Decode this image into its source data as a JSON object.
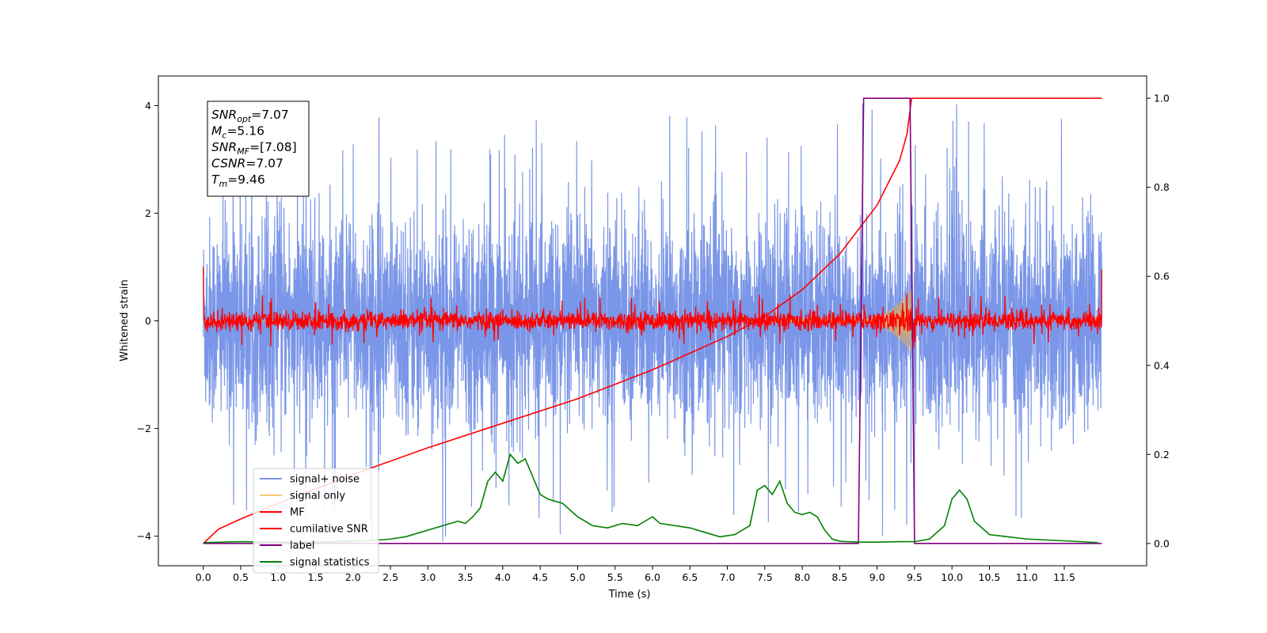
{
  "chart_data": {
    "type": "line",
    "xlabel": "Time (s)",
    "ylabel": "Whitened strain",
    "xlim": [
      -0.6,
      12.6
    ],
    "ylim": [
      -4.55,
      4.55
    ],
    "ylim_right": [
      -0.05,
      1.05
    ],
    "grid": false,
    "legend_location": "lower-left",
    "x_ticks": [
      "0.0",
      "0.5",
      "1.0",
      "1.5",
      "2.0",
      "2.5",
      "3.0",
      "3.5",
      "4.0",
      "4.5",
      "5.0",
      "5.5",
      "6.0",
      "6.5",
      "7.0",
      "7.5",
      "8.0",
      "8.5",
      "9.0",
      "9.5",
      "10.0",
      "10.5",
      "11.0",
      "11.5"
    ],
    "y_ticks_left": [
      "−4",
      "−2",
      "0",
      "2",
      "4"
    ],
    "y_ticks_right": [
      "0.0",
      "0.2",
      "0.4",
      "0.6",
      "0.8",
      "1.0"
    ],
    "info_box": [
      {
        "symbol": "SNR",
        "sub": "opt",
        "value": "=7.07"
      },
      {
        "symbol": "M",
        "sub": "c",
        "value": "=5.16"
      },
      {
        "symbol": "SNR",
        "sub": "MF",
        "value": "=[7.08]"
      },
      {
        "symbol": "CSNR",
        "sub": "",
        "value": "=7.07"
      },
      {
        "symbol": "T",
        "sub": "m",
        "value": "=9.46"
      }
    ],
    "series": [
      {
        "name": "signal+ noise",
        "color": "#7a96e8",
        "axis": "left",
        "x_range": [
          0,
          12.0
        ],
        "amplitude_typical": 1.9,
        "amplitude_peak": 4.1
      },
      {
        "name": "signal only",
        "color": "#f5b042",
        "axis": "left",
        "chirp_start": 8.8,
        "chirp_end": 9.46,
        "amplitude_end": 0.55
      },
      {
        "name": "MF",
        "color": "#ff0000",
        "axis": "left",
        "amplitude_typical": 0.2,
        "amplitude_peak": 0.5
      },
      {
        "name": "cumilative SNR",
        "color": "#ff0000",
        "axis": "right",
        "x": [
          0,
          0.2,
          0.5,
          1.0,
          2.0,
          3.0,
          4.0,
          5.0,
          6.0,
          7.0,
          7.5,
          8.0,
          8.5,
          9.0,
          9.3,
          9.4,
          9.46,
          12.0
        ],
        "y": [
          0.0,
          0.032,
          0.055,
          0.09,
          0.155,
          0.215,
          0.27,
          0.325,
          0.39,
          0.465,
          0.51,
          0.57,
          0.65,
          0.76,
          0.86,
          0.92,
          1.0,
          1.0
        ]
      },
      {
        "name": "label",
        "color": "#800080",
        "axis": "right",
        "x": [
          0,
          8.75,
          8.82,
          9.44,
          9.5,
          12.0
        ],
        "y": [
          0,
          0,
          1,
          1,
          0,
          0
        ]
      },
      {
        "name": "signal statistics",
        "color": "#008000",
        "axis": "right",
        "x": [
          0,
          0.5,
          1.0,
          1.5,
          2.0,
          2.2,
          2.5,
          2.7,
          2.9,
          3.0,
          3.2,
          3.4,
          3.5,
          3.6,
          3.7,
          3.8,
          3.9,
          4.0,
          4.1,
          4.2,
          4.3,
          4.4,
          4.5,
          4.6,
          4.8,
          5.0,
          5.2,
          5.4,
          5.6,
          5.8,
          6.0,
          6.1,
          6.3,
          6.5,
          6.7,
          6.9,
          7.1,
          7.3,
          7.4,
          7.5,
          7.6,
          7.7,
          7.8,
          7.9,
          8.0,
          8.1,
          8.2,
          8.3,
          8.4,
          8.5,
          8.6,
          8.8,
          9.0,
          9.3,
          9.5,
          9.7,
          9.9,
          10.0,
          10.1,
          10.2,
          10.3,
          10.5,
          11.0,
          11.5,
          11.95
        ],
        "y": [
          0.002,
          0.004,
          0.003,
          0.003,
          0.005,
          0.006,
          0.01,
          0.015,
          0.025,
          0.03,
          0.04,
          0.05,
          0.045,
          0.06,
          0.08,
          0.14,
          0.16,
          0.14,
          0.2,
          0.18,
          0.19,
          0.15,
          0.11,
          0.1,
          0.09,
          0.06,
          0.04,
          0.035,
          0.045,
          0.04,
          0.06,
          0.045,
          0.04,
          0.035,
          0.025,
          0.015,
          0.02,
          0.04,
          0.12,
          0.13,
          0.11,
          0.14,
          0.09,
          0.07,
          0.065,
          0.07,
          0.06,
          0.03,
          0.01,
          0.005,
          0.004,
          0.003,
          0.003,
          0.004,
          0.004,
          0.01,
          0.04,
          0.1,
          0.12,
          0.1,
          0.05,
          0.02,
          0.01,
          0.006,
          0.002
        ]
      }
    ]
  }
}
